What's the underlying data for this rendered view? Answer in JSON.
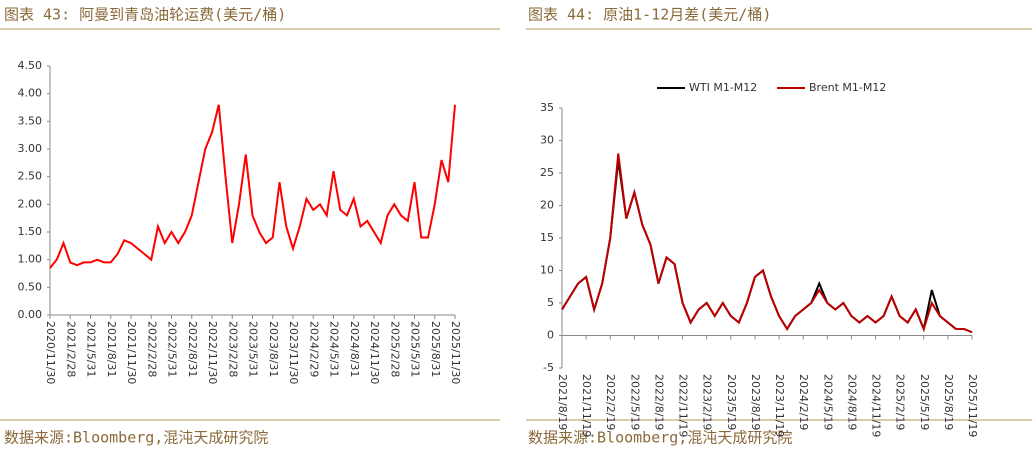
{
  "chart_data": [
    {
      "type": "line",
      "title": "图表 43:  阿曼到青岛油轮运费(美元/桶)",
      "source": "数据来源:Bloomberg,混沌天成研究院",
      "categories": [
        "2020/11/30",
        null,
        null,
        "2021/2/28",
        null,
        null,
        "2021/5/31",
        null,
        null,
        "2021/8/31",
        null,
        null,
        "2021/11/30",
        null,
        null,
        "2022/2/28",
        null,
        null,
        "2022/5/31",
        null,
        null,
        "2022/8/31",
        null,
        null,
        "2022/11/30",
        null,
        null,
        "2023/2/28",
        null,
        null,
        "2023/5/31",
        null,
        null,
        "2023/8/31",
        null,
        null,
        "2023/11/30",
        null,
        null,
        "2024/2/29",
        null,
        null,
        "2024/5/31",
        null,
        null,
        "2024/8/31",
        null,
        null,
        "2024/11/30",
        null,
        null,
        "2025/2/28",
        null,
        null,
        "2025/5/31",
        null,
        null,
        "2025/8/31",
        null,
        null,
        "2025/11/30"
      ],
      "values": [
        0.85,
        1.0,
        1.3,
        0.95,
        0.9,
        0.95,
        0.95,
        1.0,
        0.95,
        0.95,
        1.1,
        1.35,
        1.3,
        1.2,
        1.1,
        1.0,
        1.6,
        1.3,
        1.5,
        1.3,
        1.5,
        1.8,
        2.4,
        3.0,
        3.3,
        3.8,
        2.5,
        1.3,
        2.0,
        2.9,
        1.8,
        1.5,
        1.3,
        1.4,
        2.4,
        1.6,
        1.2,
        1.6,
        2.1,
        1.9,
        2.0,
        1.8,
        2.6,
        1.9,
        1.8,
        2.1,
        1.6,
        1.7,
        1.5,
        1.3,
        1.8,
        2.0,
        1.8,
        1.7,
        2.4,
        1.4,
        1.4,
        2.0,
        2.8,
        2.4,
        3.8
      ],
      "color": "#ff0000",
      "ylim": [
        0,
        4.5
      ],
      "yticks": [
        {
          "value": 0,
          "label": "0.00"
        },
        {
          "value": 0.5,
          "label": "0.50"
        },
        {
          "value": 1,
          "label": "1.00"
        },
        {
          "value": 1.5,
          "label": "1.50"
        },
        {
          "value": 2,
          "label": "2.00"
        },
        {
          "value": 2.5,
          "label": "2.50"
        },
        {
          "value": 3,
          "label": "3.00"
        },
        {
          "value": 3.5,
          "label": "3.50"
        },
        {
          "value": 4,
          "label": "4.00"
        },
        {
          "value": 4.5,
          "label": "4.50"
        }
      ]
    },
    {
      "type": "line",
      "title": "图表 44:  原油1-12月差(美元/桶)",
      "source": "数据来源:Bloomberg,混沌天成研究院",
      "categories": [
        "2021/8/19",
        null,
        null,
        "2021/11/19",
        null,
        null,
        "2022/2/19",
        null,
        null,
        "2022/5/19",
        null,
        null,
        "2022/8/19",
        null,
        null,
        "2022/11/19",
        null,
        null,
        "2023/2/19",
        null,
        null,
        "2023/5/19",
        null,
        null,
        "2023/8/19",
        null,
        null,
        "2023/11/19",
        null,
        null,
        "2024/2/19",
        null,
        null,
        "2024/5/19",
        null,
        null,
        "2024/8/19",
        null,
        null,
        "2024/11/19",
        null,
        null,
        "2025/2/19",
        null,
        null,
        "2025/5/19",
        null,
        null,
        "2025/8/19",
        null,
        null,
        "2025/11/19"
      ],
      "series": [
        {
          "name": "WTI M1-M12",
          "color": "#000000",
          "values": [
            4,
            6,
            8,
            9,
            4,
            8,
            15,
            27,
            18,
            22,
            17,
            14,
            8,
            12,
            11,
            5,
            2,
            4,
            5,
            3,
            5,
            3,
            2,
            5,
            9,
            10,
            6,
            3,
            1,
            3,
            4,
            5,
            8,
            5,
            4,
            5,
            3,
            2,
            3,
            2,
            3,
            6,
            3,
            2,
            4,
            1,
            7,
            3,
            2,
            1,
            1,
            0.5
          ]
        },
        {
          "name": "Brent M1-M12",
          "color": "#c00000",
          "values": [
            4,
            6,
            8,
            9,
            4,
            8,
            15,
            28,
            18,
            22,
            17,
            14,
            8,
            12,
            11,
            5,
            2,
            4,
            5,
            3,
            5,
            3,
            2,
            5,
            9,
            10,
            6,
            3,
            1,
            3,
            4,
            5,
            7,
            5,
            4,
            5,
            3,
            2,
            3,
            2,
            3,
            6,
            3,
            2,
            4,
            1,
            5,
            3,
            2,
            1,
            1,
            0.5
          ]
        }
      ],
      "ylim": [
        -5,
        35
      ],
      "yticks": [
        -5,
        0,
        5,
        10,
        15,
        20,
        25,
        30,
        35
      ],
      "legend": "top"
    }
  ]
}
